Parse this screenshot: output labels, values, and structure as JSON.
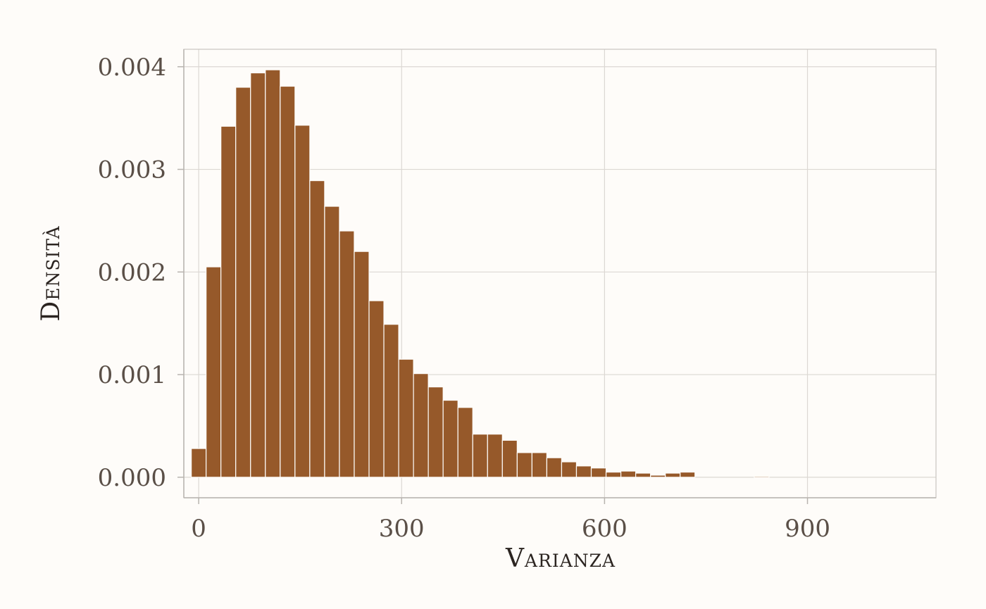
{
  "chart_data": {
    "type": "bar",
    "subtype": "histogram",
    "xlabel": "Varianza",
    "ylabel": "Densità",
    "xlim": [
      -22,
      1090
    ],
    "ylim": [
      -0.0002,
      0.00417
    ],
    "xticks": [
      0,
      300,
      600,
      900
    ],
    "xtick_labels": [
      "0",
      "300",
      "600",
      "900"
    ],
    "yticks": [
      0,
      0.001,
      0.002,
      0.003,
      0.004
    ],
    "ytick_labels": [
      "0.000",
      "0.001",
      "0.002",
      "0.003",
      "0.004"
    ],
    "grid": true,
    "bar_color": "#96592a",
    "bin_width": 21.9,
    "bin_start": -10.95,
    "values": [
      0.00028,
      0.00205,
      0.00342,
      0.0038,
      0.00394,
      0.00397,
      0.00381,
      0.00343,
      0.00289,
      0.00264,
      0.0024,
      0.0022,
      0.00172,
      0.00149,
      0.00115,
      0.00101,
      0.00088,
      0.00075,
      0.00068,
      0.00042,
      0.00042,
      0.00036,
      0.00024,
      0.00024,
      0.00019,
      0.00015,
      0.00011,
      9e-05,
      5e-05,
      6e-05,
      4e-05,
      2e-05,
      4e-05,
      5e-05,
      0.0,
      0.0,
      0.0,
      0.0,
      1e-05,
      0.0,
      0.0,
      0.0,
      0.0,
      0.0,
      0.0,
      0.0,
      0.0,
      0.0,
      0.0,
      0.0
    ]
  }
}
